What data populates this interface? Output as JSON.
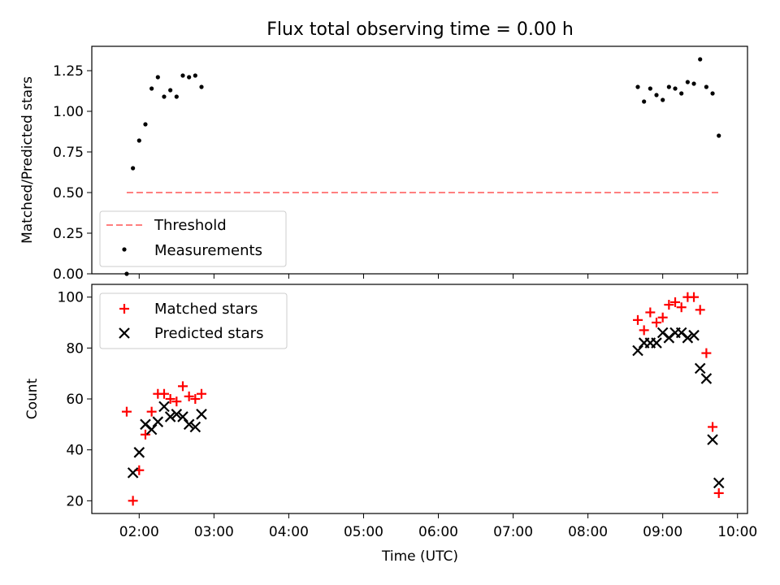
{
  "chart_data": [
    {
      "type": "scatter",
      "title": "Flux total observing time = 0.00 h",
      "xlabel": "",
      "ylabel": "Matched/Predicted stars",
      "xlim": [
        "01:22",
        "10:08"
      ],
      "ylim": [
        0,
        1.4
      ],
      "yticks": [
        "0.00",
        "0.25",
        "0.50",
        "0.75",
        "1.00",
        "1.25"
      ],
      "legend_position": "lower-left",
      "series": [
        {
          "name": "Threshold",
          "kind": "dashed-line",
          "color": "#ff7f7f",
          "points": [
            {
              "x": "01:50",
              "y": 0.5
            },
            {
              "x": "09:45",
              "y": 0.5
            }
          ]
        },
        {
          "name": "Measurements",
          "kind": "dot",
          "color": "#000000",
          "points": [
            {
              "x": "01:50",
              "y": 0.0
            },
            {
              "x": "01:55",
              "y": 0.65
            },
            {
              "x": "02:00",
              "y": 0.82
            },
            {
              "x": "02:05",
              "y": 0.92
            },
            {
              "x": "02:10",
              "y": 1.14
            },
            {
              "x": "02:15",
              "y": 1.21
            },
            {
              "x": "02:20",
              "y": 1.09
            },
            {
              "x": "02:25",
              "y": 1.13
            },
            {
              "x": "02:30",
              "y": 1.09
            },
            {
              "x": "02:35",
              "y": 1.22
            },
            {
              "x": "02:40",
              "y": 1.21
            },
            {
              "x": "02:45",
              "y": 1.22
            },
            {
              "x": "02:50",
              "y": 1.15
            },
            {
              "x": "08:40",
              "y": 1.15
            },
            {
              "x": "08:45",
              "y": 1.06
            },
            {
              "x": "08:50",
              "y": 1.14
            },
            {
              "x": "08:55",
              "y": 1.1
            },
            {
              "x": "09:00",
              "y": 1.07
            },
            {
              "x": "09:05",
              "y": 1.15
            },
            {
              "x": "09:10",
              "y": 1.14
            },
            {
              "x": "09:15",
              "y": 1.11
            },
            {
              "x": "09:20",
              "y": 1.18
            },
            {
              "x": "09:25",
              "y": 1.17
            },
            {
              "x": "09:30",
              "y": 1.32
            },
            {
              "x": "09:35",
              "y": 1.15
            },
            {
              "x": "09:40",
              "y": 1.11
            },
            {
              "x": "09:45",
              "y": 0.85
            }
          ]
        }
      ]
    },
    {
      "type": "scatter",
      "xlabel": "Time (UTC)",
      "ylabel": "Count",
      "xlim": [
        "01:22",
        "10:08"
      ],
      "ylim": [
        15,
        105
      ],
      "yticks": [
        "20",
        "40",
        "60",
        "80",
        "100"
      ],
      "xticks": [
        "02:00",
        "03:00",
        "04:00",
        "05:00",
        "06:00",
        "07:00",
        "08:00",
        "09:00",
        "10:00"
      ],
      "legend_position": "upper-left",
      "series": [
        {
          "name": "Matched stars",
          "kind": "plus",
          "color": "#ff0000",
          "points": [
            {
              "x": "01:50",
              "y": 55
            },
            {
              "x": "01:55",
              "y": 20
            },
            {
              "x": "02:00",
              "y": 32
            },
            {
              "x": "02:05",
              "y": 46
            },
            {
              "x": "02:10",
              "y": 55
            },
            {
              "x": "02:15",
              "y": 62
            },
            {
              "x": "02:20",
              "y": 62
            },
            {
              "x": "02:25",
              "y": 60
            },
            {
              "x": "02:30",
              "y": 59
            },
            {
              "x": "02:35",
              "y": 65
            },
            {
              "x": "02:40",
              "y": 61
            },
            {
              "x": "02:45",
              "y": 60
            },
            {
              "x": "02:50",
              "y": 62
            },
            {
              "x": "08:40",
              "y": 91
            },
            {
              "x": "08:45",
              "y": 87
            },
            {
              "x": "08:50",
              "y": 94
            },
            {
              "x": "08:55",
              "y": 90
            },
            {
              "x": "09:00",
              "y": 92
            },
            {
              "x": "09:05",
              "y": 97
            },
            {
              "x": "09:10",
              "y": 98
            },
            {
              "x": "09:15",
              "y": 96
            },
            {
              "x": "09:20",
              "y": 100
            },
            {
              "x": "09:25",
              "y": 100
            },
            {
              "x": "09:30",
              "y": 95
            },
            {
              "x": "09:35",
              "y": 78
            },
            {
              "x": "09:40",
              "y": 49
            },
            {
              "x": "09:45",
              "y": 23
            }
          ]
        },
        {
          "name": "Predicted stars",
          "kind": "x",
          "color": "#000000",
          "points": [
            {
              "x": "01:55",
              "y": 31
            },
            {
              "x": "02:00",
              "y": 39
            },
            {
              "x": "02:05",
              "y": 50
            },
            {
              "x": "02:10",
              "y": 48
            },
            {
              "x": "02:15",
              "y": 51
            },
            {
              "x": "02:20",
              "y": 57
            },
            {
              "x": "02:25",
              "y": 53
            },
            {
              "x": "02:30",
              "y": 54
            },
            {
              "x": "02:35",
              "y": 53
            },
            {
              "x": "02:40",
              "y": 50
            },
            {
              "x": "02:45",
              "y": 49
            },
            {
              "x": "02:50",
              "y": 54
            },
            {
              "x": "08:40",
              "y": 79
            },
            {
              "x": "08:45",
              "y": 82
            },
            {
              "x": "08:50",
              "y": 82
            },
            {
              "x": "08:55",
              "y": 82
            },
            {
              "x": "09:00",
              "y": 86
            },
            {
              "x": "09:05",
              "y": 84
            },
            {
              "x": "09:10",
              "y": 86
            },
            {
              "x": "09:15",
              "y": 86
            },
            {
              "x": "09:20",
              "y": 84
            },
            {
              "x": "09:25",
              "y": 85
            },
            {
              "x": "09:30",
              "y": 72
            },
            {
              "x": "09:35",
              "y": 68
            },
            {
              "x": "09:40",
              "y": 44
            },
            {
              "x": "09:45",
              "y": 27
            }
          ]
        }
      ]
    }
  ]
}
